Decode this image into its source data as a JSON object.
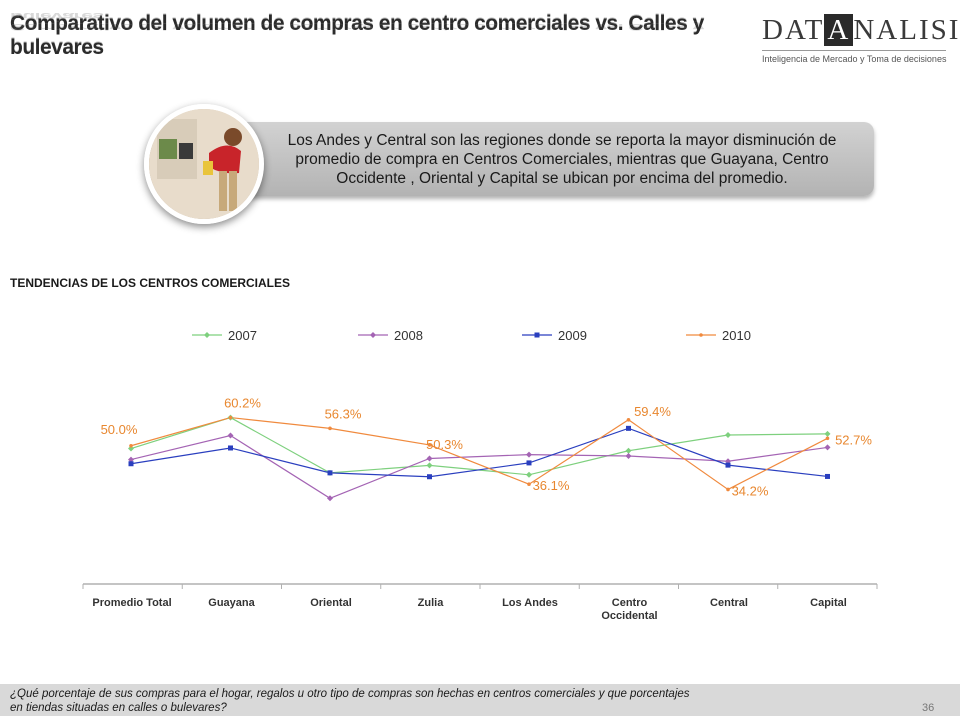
{
  "header": {
    "title": "Comparativo del volumen de compras en centro comerciales vs. Calles y bulevares"
  },
  "logo": {
    "word_left": "DAT",
    "word_box": "A",
    "word_right": "NALISIS",
    "tagline": "Inteligencia de Mercado y Toma de decisiones"
  },
  "callout": {
    "text": "Los Andes y Central son las regiones donde se reporta la mayor disminución de promedio de compra en Centros Comerciales, mientras que Guayana, Centro Occidente , Oriental y Capital se ubican por encima del promedio."
  },
  "section": {
    "title": "TENDENCIAS DE LOS CENTROS COMERCIALES"
  },
  "chart_data": {
    "type": "line",
    "categories": [
      "Promedio Total",
      "Guayana",
      "Oriental",
      "Zulia",
      "Los Andes",
      "Centro Occidental",
      "Central",
      "Capital"
    ],
    "category_labels": [
      [
        "Promedio Total"
      ],
      [
        "Guayana"
      ],
      [
        "Oriental"
      ],
      [
        "Zulia"
      ],
      [
        "Los Andes"
      ],
      [
        "Centro",
        "Occidental"
      ],
      [
        "Central"
      ],
      [
        "Capital"
      ]
    ],
    "series": [
      {
        "name": "2007",
        "color": "#7ed07e",
        "marker": "diamond",
        "values": [
          49.0,
          60.2,
          40.2,
          42.9,
          39.5,
          48.2,
          53.9,
          54.3
        ]
      },
      {
        "name": "2008",
        "color": "#a464b4",
        "marker": "diamond",
        "values": [
          45.0,
          53.7,
          31.0,
          45.4,
          46.8,
          46.3,
          44.4,
          49.4
        ]
      },
      {
        "name": "2009",
        "color": "#2a3fbf",
        "marker": "square",
        "values": [
          43.5,
          49.2,
          40.2,
          38.8,
          43.8,
          56.3,
          43.0,
          38.9
        ]
      },
      {
        "name": "2010",
        "color": "#f08a3e",
        "marker": "dot",
        "values": [
          50.0,
          60.2,
          56.3,
          50.3,
          36.1,
          59.4,
          34.2,
          52.7
        ],
        "data_labels": [
          "50.0%",
          "60.2%",
          "56.3%",
          "50.3%",
          "36.1%",
          "59.4%",
          "34.2%",
          "52.7%"
        ]
      }
    ],
    "ylim": [
      0,
      85
    ],
    "legend": "top",
    "grid": false
  },
  "footer": {
    "question_line1": "¿Qué porcentaje de sus compras para el hogar, regalos u otro tipo de compras son hechas en centros comerciales y que porcentajes",
    "question_line2": "en tiendas situadas en calles o bulevares?",
    "page_number": "36"
  }
}
